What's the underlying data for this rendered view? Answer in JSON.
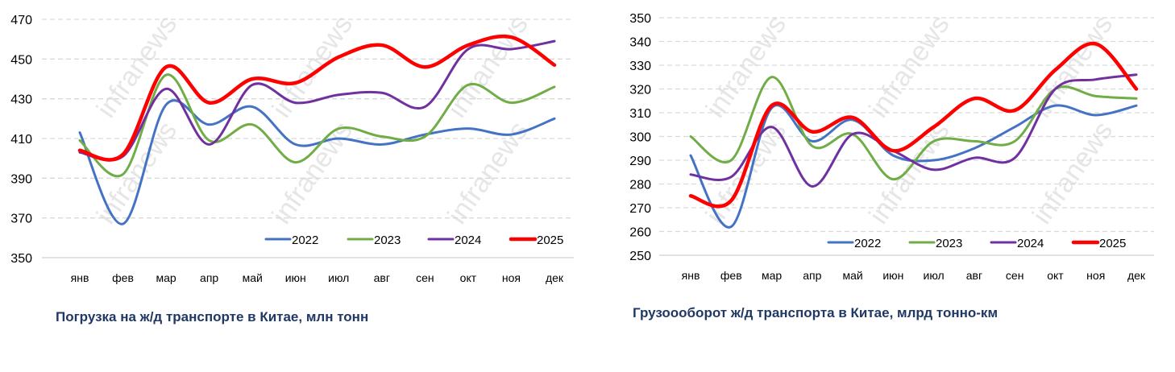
{
  "watermark": "infranews",
  "colors": {
    "2022": "#4472c4",
    "2023": "#70ad47",
    "2024": "#7030a0",
    "2025": "#ff0000"
  },
  "chart_data": [
    {
      "type": "line",
      "title": "Погрузка на ж/д транспорте в Китае, млн тонн",
      "categories": [
        "янв",
        "фев",
        "мар",
        "апр",
        "май",
        "июн",
        "июл",
        "авг",
        "сен",
        "окт",
        "ноя",
        "дек"
      ],
      "ylim": [
        350,
        470
      ],
      "yticks": [
        350,
        370,
        390,
        410,
        430,
        450,
        470
      ],
      "grid": true,
      "legend": "bottom-right",
      "series": [
        {
          "name": "2022",
          "values": [
            413,
            367,
            427,
            417,
            426,
            407,
            410,
            407,
            412,
            415,
            412,
            420
          ]
        },
        {
          "name": "2023",
          "values": [
            409,
            392,
            442,
            409,
            417,
            398,
            415,
            411,
            411,
            437,
            428,
            436
          ]
        },
        {
          "name": "2024",
          "values": [
            403,
            401,
            435,
            407,
            437,
            428,
            432,
            433,
            426,
            455,
            455,
            459
          ]
        },
        {
          "name": "2025",
          "values": [
            404,
            402,
            446,
            428,
            440,
            438,
            451,
            457,
            446,
            457,
            461,
            447
          ]
        }
      ]
    },
    {
      "type": "line",
      "title": "Грузоооборот ж/д транспорта в Китае, млрд тонно-км",
      "categories": [
        "янв",
        "фев",
        "мар",
        "апр",
        "май",
        "июн",
        "июл",
        "авг",
        "сен",
        "окт",
        "ноя",
        "дек"
      ],
      "ylim": [
        250,
        350
      ],
      "yticks": [
        250,
        260,
        270,
        280,
        290,
        300,
        310,
        320,
        330,
        340,
        350
      ],
      "grid": true,
      "legend": "bottom-right",
      "series": [
        {
          "name": "2022",
          "values": [
            292,
            262,
            312,
            298,
            307,
            292,
            290,
            295,
            304,
            313,
            309,
            313
          ]
        },
        {
          "name": "2023",
          "values": [
            300,
            290,
            325,
            296,
            301,
            282,
            298,
            298,
            298,
            320,
            317,
            316
          ]
        },
        {
          "name": "2024",
          "values": [
            284,
            283,
            304,
            279,
            301,
            294,
            286,
            291,
            291,
            320,
            324,
            326
          ]
        },
        {
          "name": "2025",
          "values": [
            275,
            273,
            313,
            302,
            308,
            294,
            304,
            316,
            311,
            328,
            339,
            320
          ]
        }
      ]
    }
  ]
}
